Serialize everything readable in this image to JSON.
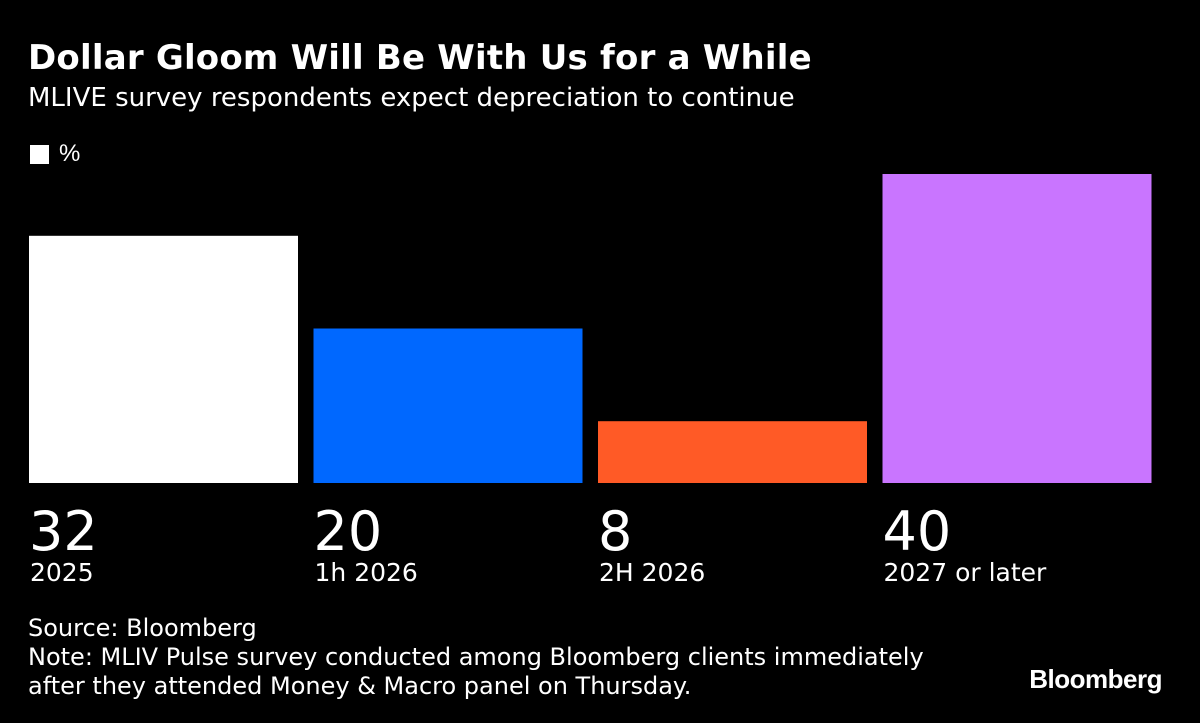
{
  "chart_data": {
    "type": "bar",
    "title": "Dollar Gloom Will Be With Us for a While",
    "subtitle": "MLIVE survey respondents expect depreciation to continue",
    "legend": [
      "%"
    ],
    "categories": [
      "2025",
      "1h 2026",
      "2H 2026",
      "2027 or later"
    ],
    "values": [
      32,
      20,
      8,
      40
    ],
    "colors": [
      "#ffffff",
      "#0068ff",
      "#ff5a26",
      "#c975ff"
    ],
    "xlabel": "",
    "ylabel": "%",
    "ylim": [
      0,
      40
    ],
    "grid": false,
    "legend_position": "top-left"
  },
  "footer": {
    "source": "Source: Bloomberg",
    "note": "Note: MLIV Pulse survey conducted among Bloomberg clients immediately after they attended Money & Macro panel on Thursday.",
    "brand": "Bloomberg"
  }
}
